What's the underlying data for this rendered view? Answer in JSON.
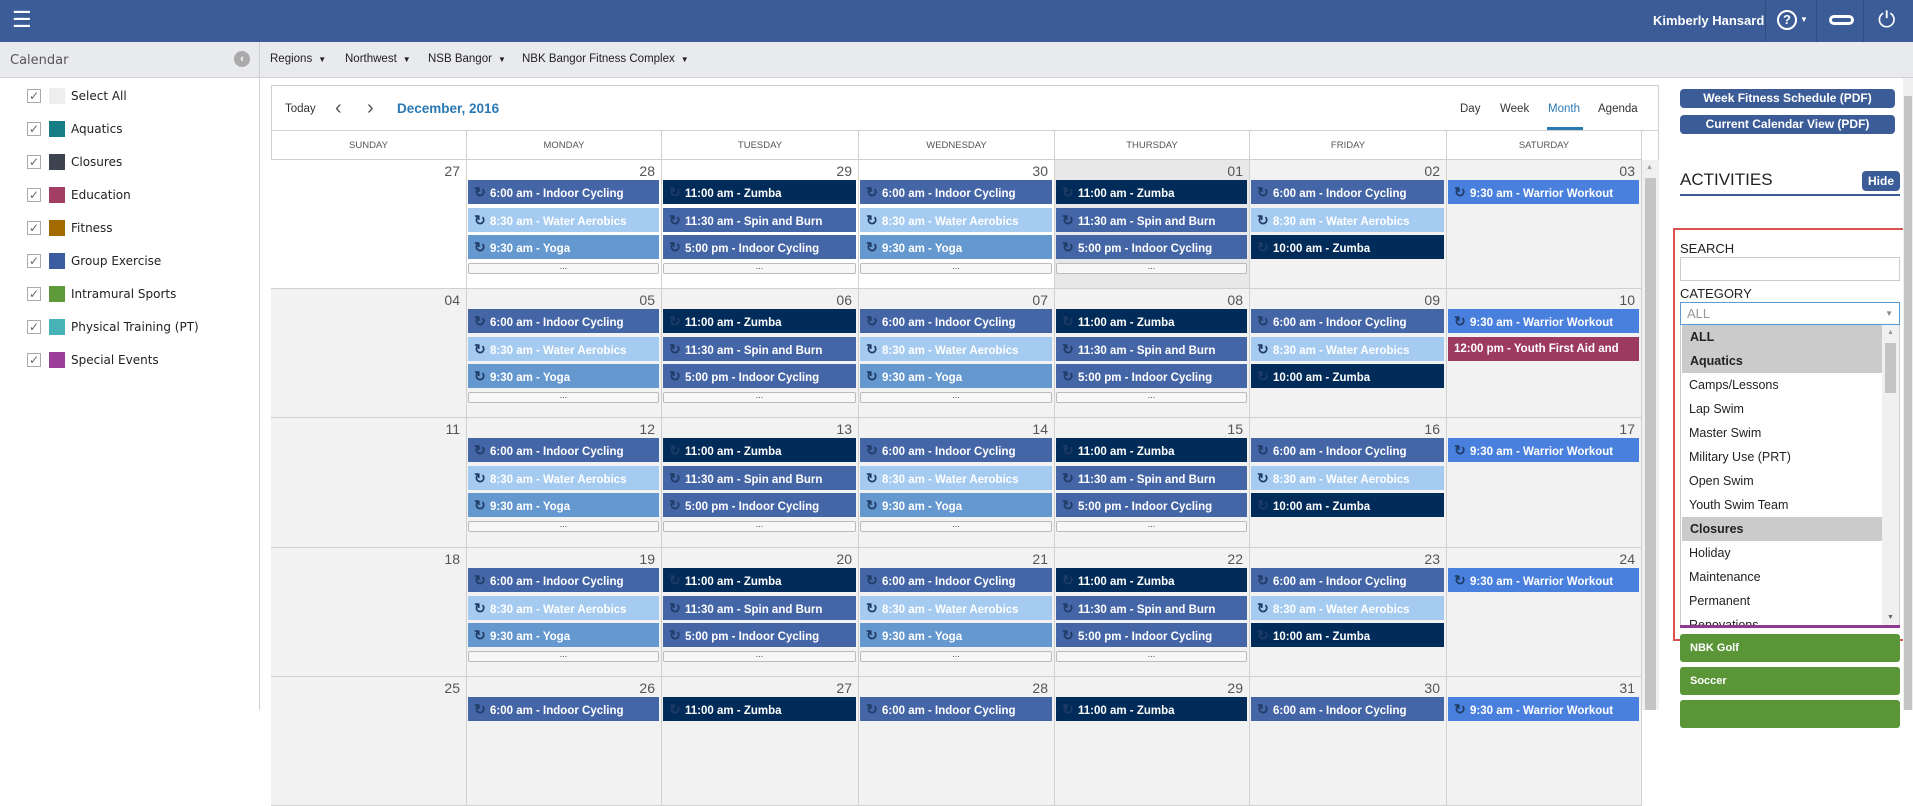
{
  "header": {
    "user_name": "Kimberly Hansard",
    "help_icon": "?",
    "menu_icon": "hamburger-icon"
  },
  "breadcrumbs": [
    "Regions",
    "Northwest",
    "NSB Bangor",
    "NBK Bangor Fitness Complex"
  ],
  "sidebar": {
    "title": "Calendar",
    "items": [
      {
        "label": "Select All",
        "color": "#eeeeee"
      },
      {
        "label": "Aquatics",
        "color": "#177d84"
      },
      {
        "label": "Closures",
        "color": "#3e4350"
      },
      {
        "label": "Education",
        "color": "#a23e63"
      },
      {
        "label": "Fitness",
        "color": "#a36a00"
      },
      {
        "label": "Group Exercise",
        "color": "#3b5c9e"
      },
      {
        "label": "Intramural Sports",
        "color": "#5e9a3a"
      },
      {
        "label": "Physical Training (PT)",
        "color": "#47b3b6"
      },
      {
        "label": "Special Events",
        "color": "#9b3f98"
      }
    ]
  },
  "calendar": {
    "today_label": "Today",
    "title": "December, 2016",
    "views": [
      "Day",
      "Week",
      "Month",
      "Agenda"
    ],
    "active_view": "Month",
    "weekdays": [
      "SUNDAY",
      "MONDAY",
      "TUESDAY",
      "WEDNESDAY",
      "THURSDAY",
      "FRIDAY",
      "SATURDAY"
    ],
    "more_label": "...",
    "event_colors": {
      "cycling": "#4465a6",
      "water": "#a6cbf1",
      "yoga": "#6598cf",
      "zumba": "#012b58",
      "spin": "#4465a6",
      "warrior": "#4a80dd",
      "youth": "#9d3a5f"
    },
    "weeks": [
      [
        {
          "n": "27",
          "out": true,
          "ev": []
        },
        {
          "n": "28",
          "out": true,
          "more": true,
          "ev": [
            [
              "6:00 am - Indoor Cycling",
              "cycling"
            ],
            [
              "8:30 am - Water Aerobics",
              "water"
            ],
            [
              "9:30 am - Yoga",
              "yoga"
            ]
          ]
        },
        {
          "n": "29",
          "out": true,
          "more": true,
          "ev": [
            [
              "11:00 am - Zumba",
              "zumba"
            ],
            [
              "11:30 am - Spin and Burn",
              "spin"
            ],
            [
              "5:00 pm - Indoor Cycling",
              "cycling"
            ]
          ]
        },
        {
          "n": "30",
          "out": true,
          "more": true,
          "ev": [
            [
              "6:00 am - Indoor Cycling",
              "cycling"
            ],
            [
              "8:30 am - Water Aerobics",
              "water"
            ],
            [
              "9:30 am - Yoga",
              "yoga"
            ]
          ]
        },
        {
          "n": "01",
          "today": true,
          "more": true,
          "ev": [
            [
              "11:00 am - Zumba",
              "zumba"
            ],
            [
              "11:30 am - Spin and Burn",
              "spin"
            ],
            [
              "5:00 pm - Indoor Cycling",
              "cycling"
            ]
          ]
        },
        {
          "n": "02",
          "ev": [
            [
              "6:00 am - Indoor Cycling",
              "cycling"
            ],
            [
              "8:30 am - Water Aerobics",
              "water"
            ],
            [
              "10:00 am - Zumba",
              "zumba"
            ]
          ]
        },
        {
          "n": "03",
          "ev": [
            [
              "9:30 am - Warrior Workout",
              "warrior"
            ]
          ]
        }
      ],
      [
        {
          "n": "04",
          "ev": []
        },
        {
          "n": "05",
          "more": true,
          "ev": [
            [
              "6:00 am - Indoor Cycling",
              "cycling"
            ],
            [
              "8:30 am - Water Aerobics",
              "water"
            ],
            [
              "9:30 am - Yoga",
              "yoga"
            ]
          ]
        },
        {
          "n": "06",
          "more": true,
          "ev": [
            [
              "11:00 am - Zumba",
              "zumba"
            ],
            [
              "11:30 am - Spin and Burn",
              "spin"
            ],
            [
              "5:00 pm - Indoor Cycling",
              "cycling"
            ]
          ]
        },
        {
          "n": "07",
          "more": true,
          "ev": [
            [
              "6:00 am - Indoor Cycling",
              "cycling"
            ],
            [
              "8:30 am - Water Aerobics",
              "water"
            ],
            [
              "9:30 am - Yoga",
              "yoga"
            ]
          ]
        },
        {
          "n": "08",
          "more": true,
          "ev": [
            [
              "11:00 am - Zumba",
              "zumba"
            ],
            [
              "11:30 am - Spin and Burn",
              "spin"
            ],
            [
              "5:00 pm - Indoor Cycling",
              "cycling"
            ]
          ]
        },
        {
          "n": "09",
          "ev": [
            [
              "6:00 am - Indoor Cycling",
              "cycling"
            ],
            [
              "8:30 am - Water Aerobics",
              "water"
            ],
            [
              "10:00 am - Zumba",
              "zumba"
            ]
          ]
        },
        {
          "n": "10",
          "ev": [
            [
              "9:30 am - Warrior Workout",
              "warrior"
            ],
            [
              "12:00 pm - Youth First Aid and",
              "youth"
            ]
          ]
        }
      ],
      [
        {
          "n": "11",
          "ev": []
        },
        {
          "n": "12",
          "more": true,
          "ev": [
            [
              "6:00 am - Indoor Cycling",
              "cycling"
            ],
            [
              "8:30 am - Water Aerobics",
              "water"
            ],
            [
              "9:30 am - Yoga",
              "yoga"
            ]
          ]
        },
        {
          "n": "13",
          "more": true,
          "ev": [
            [
              "11:00 am - Zumba",
              "zumba"
            ],
            [
              "11:30 am - Spin and Burn",
              "spin"
            ],
            [
              "5:00 pm - Indoor Cycling",
              "cycling"
            ]
          ]
        },
        {
          "n": "14",
          "more": true,
          "ev": [
            [
              "6:00 am - Indoor Cycling",
              "cycling"
            ],
            [
              "8:30 am - Water Aerobics",
              "water"
            ],
            [
              "9:30 am - Yoga",
              "yoga"
            ]
          ]
        },
        {
          "n": "15",
          "more": true,
          "ev": [
            [
              "11:00 am - Zumba",
              "zumba"
            ],
            [
              "11:30 am - Spin and Burn",
              "spin"
            ],
            [
              "5:00 pm - Indoor Cycling",
              "cycling"
            ]
          ]
        },
        {
          "n": "16",
          "ev": [
            [
              "6:00 am - Indoor Cycling",
              "cycling"
            ],
            [
              "8:30 am - Water Aerobics",
              "water"
            ],
            [
              "10:00 am - Zumba",
              "zumba"
            ]
          ]
        },
        {
          "n": "17",
          "ev": [
            [
              "9:30 am - Warrior Workout",
              "warrior"
            ]
          ]
        }
      ],
      [
        {
          "n": "18",
          "ev": []
        },
        {
          "n": "19",
          "more": true,
          "ev": [
            [
              "6:00 am - Indoor Cycling",
              "cycling"
            ],
            [
              "8:30 am - Water Aerobics",
              "water"
            ],
            [
              "9:30 am - Yoga",
              "yoga"
            ]
          ]
        },
        {
          "n": "20",
          "more": true,
          "ev": [
            [
              "11:00 am - Zumba",
              "zumba"
            ],
            [
              "11:30 am - Spin and Burn",
              "spin"
            ],
            [
              "5:00 pm - Indoor Cycling",
              "cycling"
            ]
          ]
        },
        {
          "n": "21",
          "more": true,
          "ev": [
            [
              "6:00 am - Indoor Cycling",
              "cycling"
            ],
            [
              "8:30 am - Water Aerobics",
              "water"
            ],
            [
              "9:30 am - Yoga",
              "yoga"
            ]
          ]
        },
        {
          "n": "22",
          "more": true,
          "ev": [
            [
              "11:00 am - Zumba",
              "zumba"
            ],
            [
              "11:30 am - Spin and Burn",
              "spin"
            ],
            [
              "5:00 pm - Indoor Cycling",
              "cycling"
            ]
          ]
        },
        {
          "n": "23",
          "ev": [
            [
              "6:00 am - Indoor Cycling",
              "cycling"
            ],
            [
              "8:30 am - Water Aerobics",
              "water"
            ],
            [
              "10:00 am - Zumba",
              "zumba"
            ]
          ]
        },
        {
          "n": "24",
          "ev": [
            [
              "9:30 am - Warrior Workout",
              "warrior"
            ]
          ]
        }
      ],
      [
        {
          "n": "25",
          "ev": []
        },
        {
          "n": "26",
          "ev": [
            [
              "6:00 am - Indoor Cycling",
              "cycling"
            ]
          ]
        },
        {
          "n": "27",
          "ev": [
            [
              "11:00 am - Zumba",
              "zumba"
            ]
          ]
        },
        {
          "n": "28",
          "ev": [
            [
              "6:00 am - Indoor Cycling",
              "cycling"
            ]
          ]
        },
        {
          "n": "29",
          "ev": [
            [
              "11:00 am - Zumba",
              "zumba"
            ]
          ]
        },
        {
          "n": "30",
          "ev": [
            [
              "6:00 am - Indoor Cycling",
              "cycling"
            ]
          ]
        },
        {
          "n": "31",
          "ev": [
            [
              "9:30 am - Warrior Workout",
              "warrior"
            ]
          ]
        }
      ]
    ]
  },
  "right": {
    "week_pdf": "Week Fitness Schedule (PDF)",
    "current_pdf": "Current Calendar View (PDF)",
    "activities_title": "ACTIVITIES",
    "hide_label": "Hide",
    "search_label": "SEARCH",
    "search_value": "",
    "category_label": "CATEGORY",
    "category_selected": "ALL",
    "category_options": [
      {
        "label": "ALL",
        "group": true
      },
      {
        "label": "Aquatics",
        "group": true
      },
      {
        "label": "Camps/Lessons"
      },
      {
        "label": "Lap Swim"
      },
      {
        "label": "Master Swim"
      },
      {
        "label": "Military Use (PRT)"
      },
      {
        "label": "Open Swim"
      },
      {
        "label": "Youth Swim Team"
      },
      {
        "label": "Closures",
        "group": true
      },
      {
        "label": "Holiday"
      },
      {
        "label": "Maintenance"
      },
      {
        "label": "Permanent"
      },
      {
        "label": "Renovations"
      }
    ],
    "activity_buttons": [
      "NBK Golf",
      "Soccer",
      ""
    ]
  }
}
